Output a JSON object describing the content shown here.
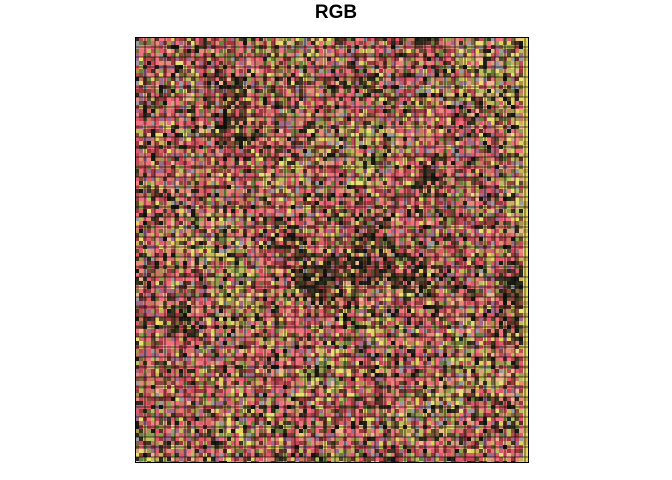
{
  "title": "RGB",
  "image": {
    "description_tokens": [
      "rgb-raster",
      "grid-overlay"
    ],
    "palette": [
      "#1a1a14",
      "#2b2a1c",
      "#3a3622",
      "#5a4a2e",
      "#7a6a3a",
      "#a8944a",
      "#c9b45a",
      "#e6d060",
      "#e8e070",
      "#b8c060",
      "#8ea050",
      "#6a8040",
      "#9a3a40",
      "#c04a55",
      "#e05a6a",
      "#f07080",
      "#e88a7a",
      "#d8a080",
      "#f0b890",
      "#c87860",
      "#8a4a3a",
      "#603028",
      "#a06a8a",
      "#9a9aa0"
    ],
    "grid_color": "#000000"
  }
}
